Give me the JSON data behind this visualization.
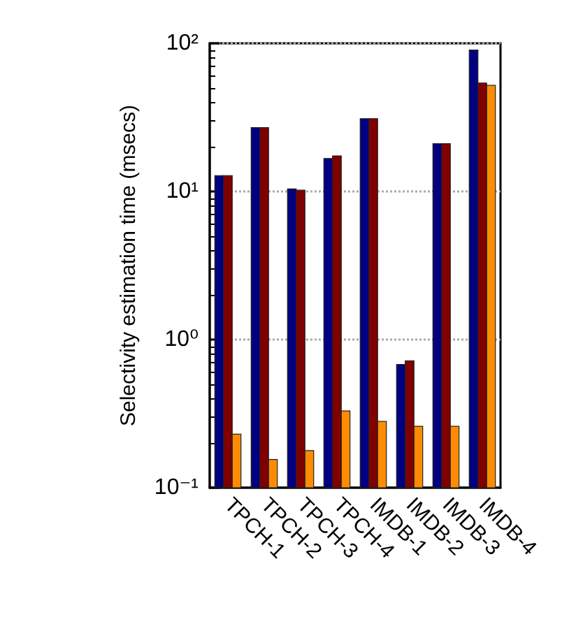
{
  "chart_data": {
    "type": "bar",
    "ylabel": "Selectivity estimation time (msecs)",
    "log": true,
    "grid": "y",
    "categories": [
      "TPCH-1",
      "TPCH-2",
      "TPCH-3",
      "TPCH-4",
      "IMDB-1",
      "IMDB-2",
      "IMDB-3",
      "IMDB-4"
    ],
    "ylim": [
      0.1,
      100
    ],
    "yticks": [
      {
        "value": 0.1,
        "label": "10⁻¹"
      },
      {
        "value": 1,
        "label": "10⁰"
      },
      {
        "value": 10,
        "label": "10¹"
      },
      {
        "value": 100,
        "label": "10²"
      }
    ],
    "series": [
      {
        "color": "#000080",
        "values": [
          12.8,
          27,
          10.4,
          16.7,
          31,
          0.68,
          21,
          90
        ]
      },
      {
        "color": "#800000",
        "values": [
          12.8,
          27,
          10.2,
          17.4,
          31,
          0.72,
          21,
          54
        ]
      },
      {
        "color": "#ff8c00",
        "values": [
          0.23,
          0.155,
          0.178,
          0.33,
          0.28,
          0.26,
          0.26,
          52
        ]
      }
    ]
  }
}
